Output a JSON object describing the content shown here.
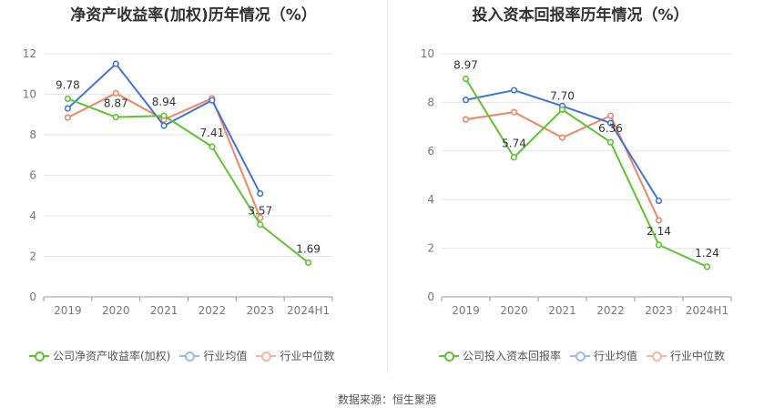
{
  "colors": {
    "company": "#5cc52c",
    "avg": "#3d73e0",
    "median": "#f4845f",
    "grid": "#e6e6e6",
    "axis": "#999999"
  },
  "source": "数据来源：恒生聚源",
  "chart_data": [
    {
      "type": "line",
      "title": "净资产收益率(加权)历年情况（%）",
      "categories": [
        "2019",
        "2020",
        "2021",
        "2022",
        "2023",
        "2024H1"
      ],
      "ylim": [
        0,
        12
      ],
      "yticks": [
        0,
        2,
        4,
        6,
        8,
        10,
        12
      ],
      "grid": true,
      "legend": "bottom",
      "series": [
        {
          "name": "公司净资产收益率(加权)",
          "key": "company",
          "values": [
            9.78,
            8.87,
            8.94,
            7.41,
            3.57,
            1.69
          ],
          "labels": [
            "9.78",
            "8.87",
            "8.94",
            "7.41",
            "3.57",
            "1.69"
          ]
        },
        {
          "name": "行业均值",
          "key": "avg",
          "values": [
            9.3,
            11.5,
            8.45,
            9.7,
            5.1,
            null
          ]
        },
        {
          "name": "行业中位数",
          "key": "median",
          "values": [
            8.85,
            10.05,
            8.75,
            9.8,
            3.9,
            null
          ]
        }
      ]
    },
    {
      "type": "line",
      "title": "投入资本回报率历年情况（%）",
      "categories": [
        "2019",
        "2020",
        "2021",
        "2022",
        "2023",
        "2024H1"
      ],
      "ylim": [
        0,
        10
      ],
      "yticks": [
        0,
        2,
        4,
        6,
        8,
        10
      ],
      "grid": true,
      "legend": "bottom",
      "series": [
        {
          "name": "公司投入资本回报率",
          "key": "company",
          "values": [
            8.97,
            5.74,
            7.7,
            6.36,
            2.14,
            1.24
          ],
          "labels": [
            "8.97",
            "5.74",
            "7.70",
            "6.36",
            "2.14",
            "1.24"
          ]
        },
        {
          "name": "行业均值",
          "key": "avg",
          "values": [
            8.1,
            8.5,
            7.85,
            7.15,
            3.95,
            null
          ]
        },
        {
          "name": "行业中位数",
          "key": "median",
          "values": [
            7.3,
            7.6,
            6.55,
            7.45,
            3.15,
            null
          ]
        }
      ]
    }
  ]
}
